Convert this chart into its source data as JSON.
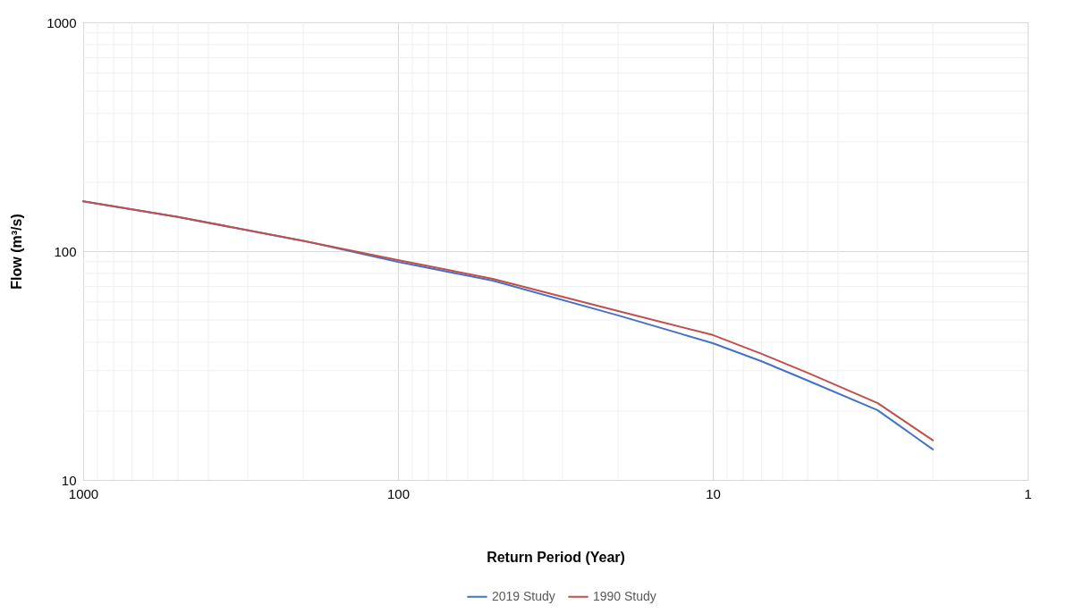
{
  "chart_data": {
    "type": "line",
    "xlabel": "Return Period (Year)",
    "ylabel": "Flow (m³/s)",
    "log": "xy",
    "grid": true,
    "legend": "bottom",
    "marker": "none",
    "line_style": "solid",
    "xlim": [
      1000,
      1
    ],
    "xticks": [
      1000,
      100,
      10,
      1
    ],
    "ylim": [
      10,
      1000
    ],
    "yticks": [
      10,
      100,
      1000
    ],
    "x": [
      1000,
      500,
      200,
      100,
      50,
      20,
      10,
      7,
      5,
      3,
      2
    ],
    "series": [
      {
        "name": "2019 Study",
        "color": "#4472c4",
        "values": [
          165,
          141,
          111,
          89.8,
          74.3,
          52.4,
          39.6,
          33,
          27.2,
          20.2,
          13.6
        ]
      },
      {
        "name": "1990 Study",
        "color": "#c0504d",
        "values": [
          165,
          141,
          111,
          91.4,
          75.7,
          54.7,
          43,
          35.6,
          29.4,
          21.7,
          14.9
        ]
      }
    ]
  }
}
